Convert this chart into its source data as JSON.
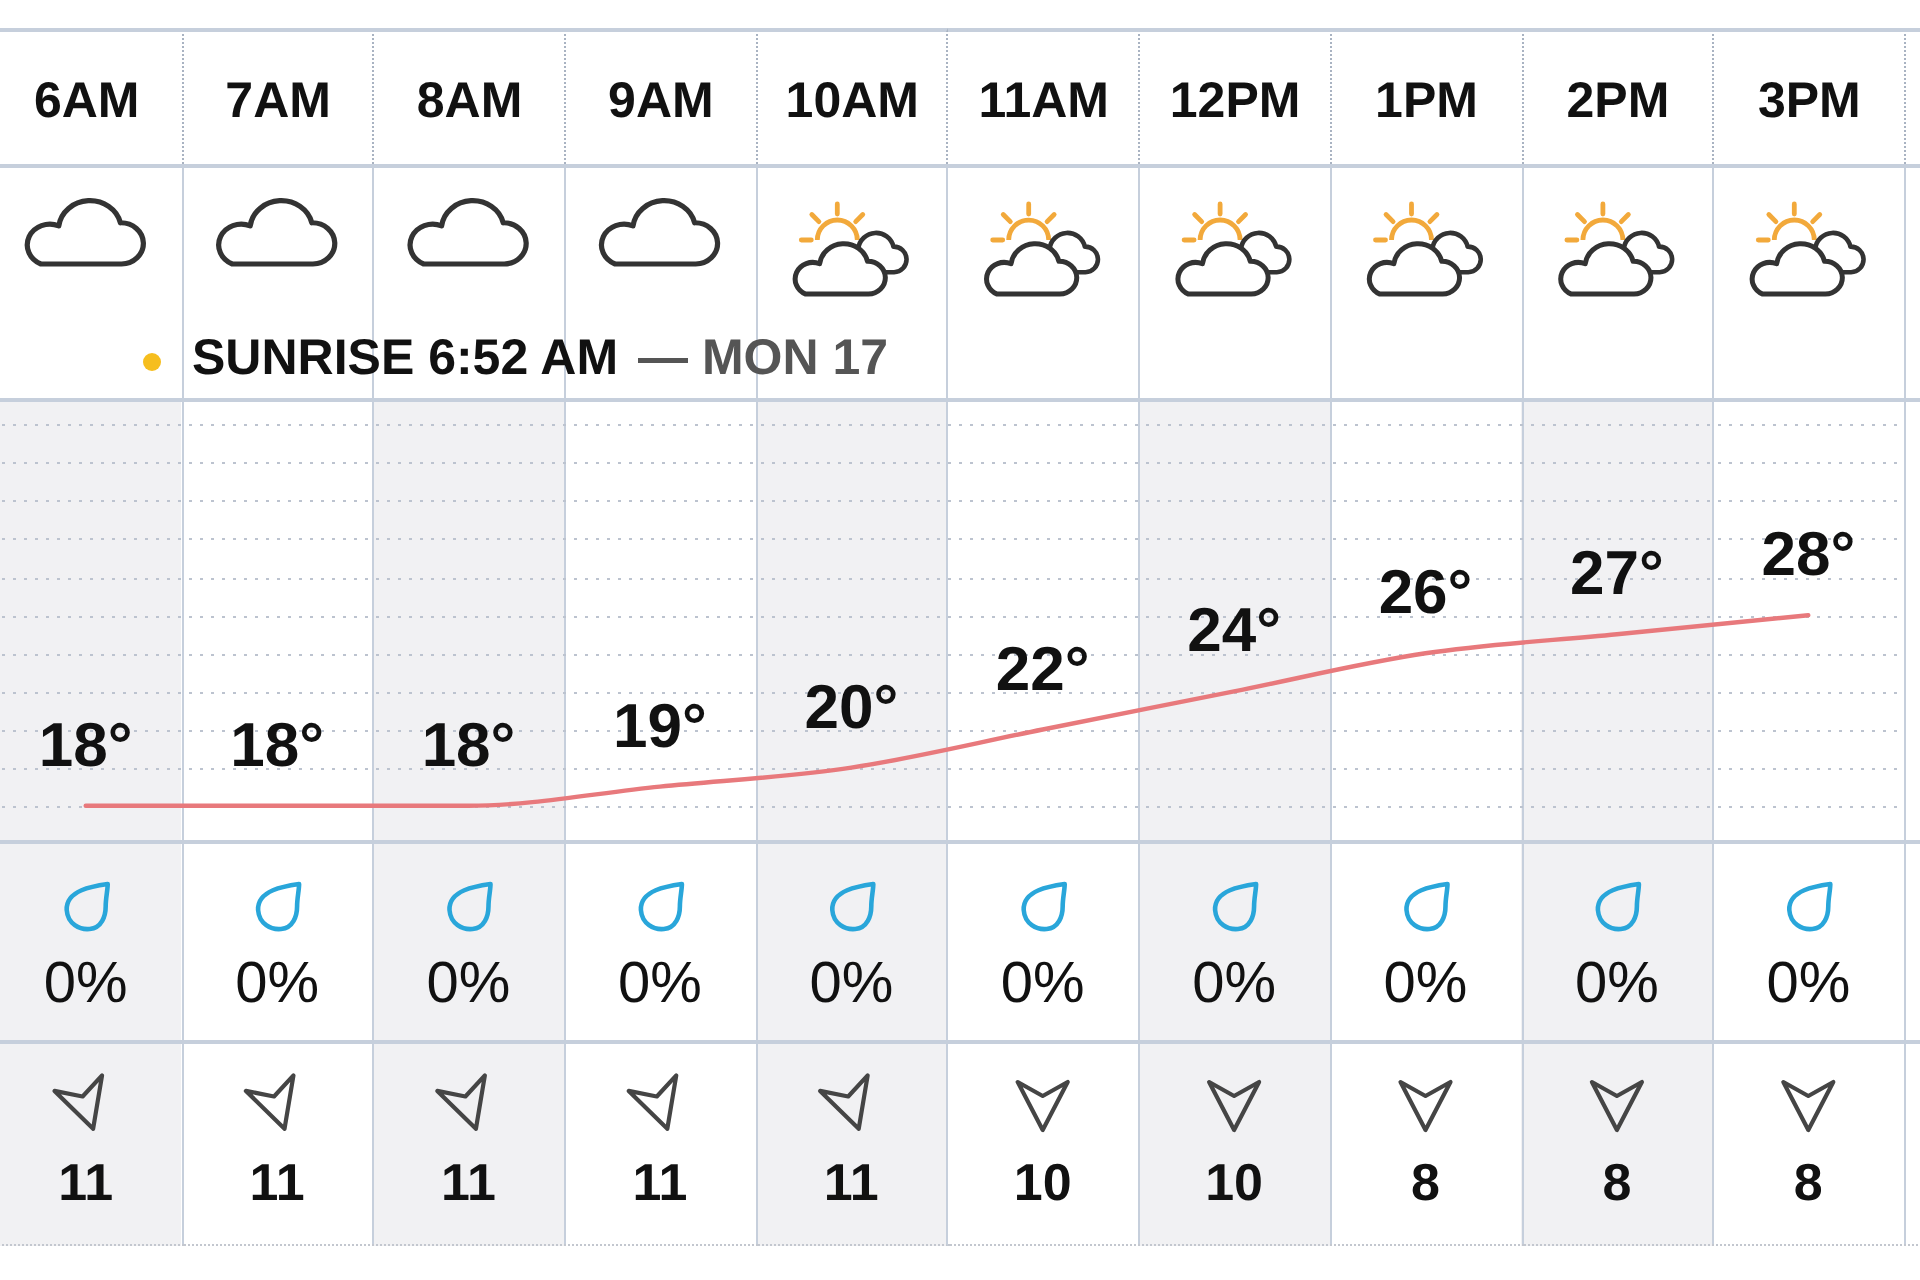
{
  "chart_data": [
    {
      "type": "line",
      "categories": [
        "6AM",
        "7AM",
        "8AM",
        "9AM",
        "10AM",
        "11AM",
        "12PM",
        "1PM",
        "2PM",
        "3PM"
      ],
      "values": [
        18,
        18,
        18,
        19,
        20,
        22,
        24,
        26,
        27,
        28
      ],
      "value_labels": [
        "18°",
        "18°",
        "18°",
        "19°",
        "20°",
        "22°",
        "24°",
        "26°",
        "27°",
        "28°"
      ],
      "color": "#e8797c",
      "ylim": [
        16.2,
        39.4
      ],
      "grid": "y",
      "tick_labels": "x",
      "annotations": [
        "SUNRISE 6:52 AM",
        "— MON 17"
      ]
    },
    {
      "type": "other",
      "values": [
        0,
        0,
        0,
        0,
        0,
        0,
        0,
        0,
        0,
        0
      ],
      "value_labels": [
        "0%",
        "0%",
        "0%",
        "0%",
        "0%",
        "0%",
        "0%",
        "0%",
        "0%",
        "0%"
      ]
    },
    {
      "type": "other",
      "values": [
        11,
        11,
        11,
        11,
        11,
        10,
        10,
        8,
        8,
        8
      ],
      "data_labels": true
    }
  ]
}
